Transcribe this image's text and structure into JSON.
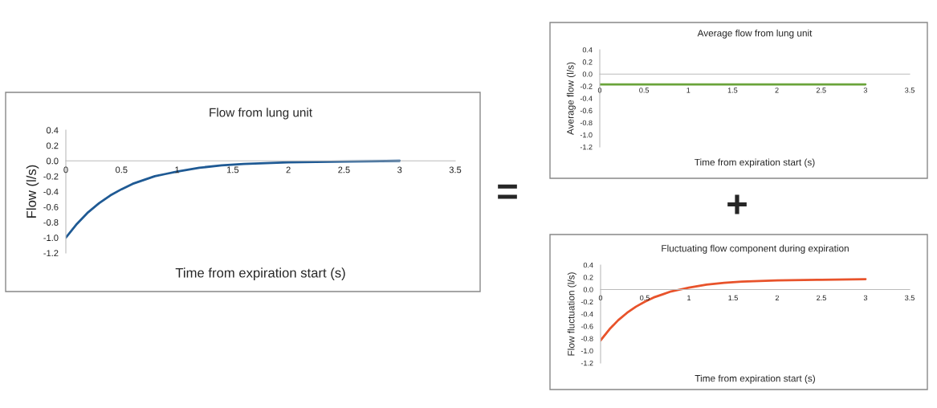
{
  "chart_data": [
    {
      "type": "line",
      "title": "Flow from lung unit",
      "xlabel": "Time from expiration start (s)",
      "ylabel": "Flow (l/s)",
      "x": [
        0,
        0.1,
        0.2,
        0.3,
        0.4,
        0.5,
        0.6,
        0.7,
        0.8,
        0.9,
        1.0,
        1.2,
        1.4,
        1.6,
        1.8,
        2.0,
        2.5,
        3.0
      ],
      "series": [
        {
          "color": "#1f5a94",
          "values": [
            -1.0,
            -0.82,
            -0.67,
            -0.55,
            -0.45,
            -0.37,
            -0.3,
            -0.25,
            -0.2,
            -0.17,
            -0.14,
            -0.09,
            -0.06,
            -0.04,
            -0.03,
            -0.02,
            -0.01,
            0.0
          ]
        }
      ],
      "xlim": [
        0,
        3.5
      ],
      "xticks": [
        0,
        0.5,
        1,
        1.5,
        2,
        2.5,
        3,
        3.5
      ],
      "ylim": [
        -1.2,
        0.4
      ],
      "yticks": [
        {
          "value": 0.4,
          "label": "0.4"
        },
        {
          "value": 0.2,
          "label": "0.2"
        },
        {
          "value": 0.0,
          "label": "0.0"
        },
        {
          "value": -0.2,
          "label": "-0.2"
        },
        {
          "value": -0.4,
          "label": "-0.4"
        },
        {
          "value": -0.6,
          "label": "-0.6"
        },
        {
          "value": -0.8,
          "label": "-0.8"
        },
        {
          "value": -1.0,
          "label": "-1.0"
        },
        {
          "value": -1.2,
          "label": "-1.2"
        }
      ],
      "grid": false,
      "annotations": [
        "="
      ]
    },
    {
      "type": "line",
      "title": "Average flow from lung unit",
      "xlabel": "Time from expiration start (s)",
      "ylabel": "Average flow (l/s)",
      "x": [
        0,
        3.0
      ],
      "series": [
        {
          "color": "#6aa33a",
          "values": [
            -0.17,
            -0.17
          ]
        }
      ],
      "xlim": [
        0,
        3.5
      ],
      "xticks": [
        0,
        0.5,
        1,
        1.5,
        2,
        2.5,
        3,
        3.5
      ],
      "ylim": [
        -1.2,
        0.4
      ],
      "yticks": [
        {
          "value": 0.4,
          "label": "0.4"
        },
        {
          "value": 0.2,
          "label": "0.2"
        },
        {
          "value": 0.0,
          "label": "0.0"
        },
        {
          "value": -0.2,
          "label": "-0.2"
        },
        {
          "value": -0.4,
          "label": "-0.4"
        },
        {
          "value": -0.6,
          "label": "-0.6"
        },
        {
          "value": -0.8,
          "label": "-0.8"
        },
        {
          "value": -1.0,
          "label": "-1.0"
        },
        {
          "value": -1.2,
          "label": "-1.2"
        }
      ],
      "grid": false,
      "annotations": [
        "+"
      ]
    },
    {
      "type": "line",
      "title": "Fluctuating flow component during expiration",
      "xlabel": "Time from expiration start (s)",
      "ylabel": "Flow fluctuation (l/s)",
      "x": [
        0,
        0.1,
        0.2,
        0.3,
        0.4,
        0.5,
        0.6,
        0.7,
        0.8,
        0.9,
        1.0,
        1.2,
        1.4,
        1.6,
        1.8,
        2.0,
        2.5,
        3.0
      ],
      "series": [
        {
          "color": "#e8532b",
          "values": [
            -0.83,
            -0.65,
            -0.5,
            -0.38,
            -0.28,
            -0.2,
            -0.13,
            -0.08,
            -0.03,
            0.0,
            0.03,
            0.08,
            0.11,
            0.13,
            0.14,
            0.15,
            0.16,
            0.17
          ]
        }
      ],
      "xlim": [
        0,
        3.5
      ],
      "xticks": [
        0,
        0.5,
        1,
        1.5,
        2,
        2.5,
        3,
        3.5
      ],
      "ylim": [
        -1.2,
        0.4
      ],
      "yticks": [
        {
          "value": 0.4,
          "label": "0.4"
        },
        {
          "value": 0.2,
          "label": "0.2"
        },
        {
          "value": 0.0,
          "label": "0.0"
        },
        {
          "value": -0.2,
          "label": "-0.2"
        },
        {
          "value": -0.4,
          "label": "-0.4"
        },
        {
          "value": -0.6,
          "label": "-0.6"
        },
        {
          "value": -0.8,
          "label": "-0.8"
        },
        {
          "value": -1.0,
          "label": "-1.0"
        },
        {
          "value": -1.2,
          "label": "-1.2"
        }
      ],
      "grid": false
    }
  ]
}
